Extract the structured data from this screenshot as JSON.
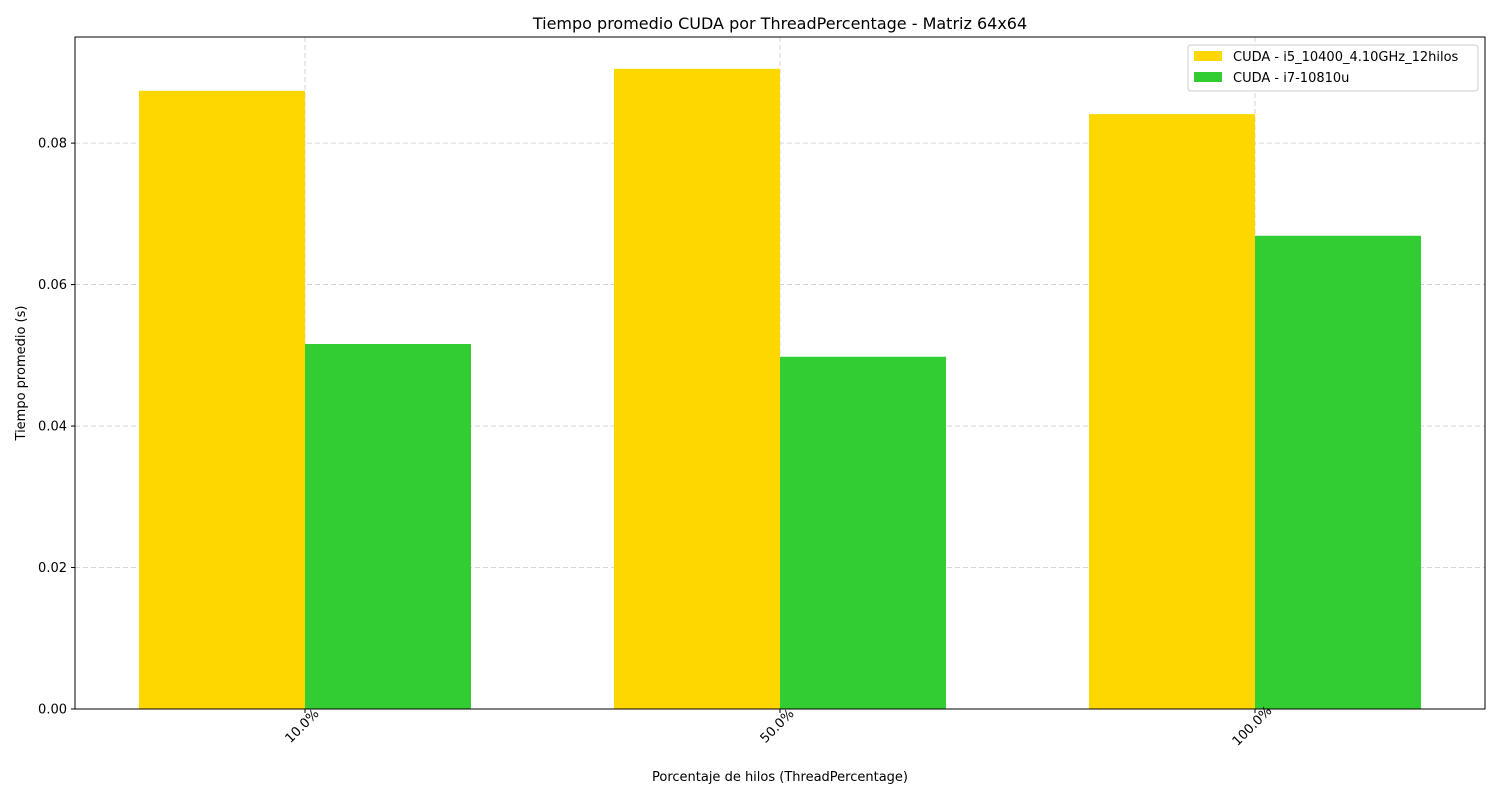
{
  "chart_data": {
    "type": "bar",
    "title": "Tiempo promedio CUDA por ThreadPercentage - Matriz 64x64",
    "xlabel": "Porcentaje de hilos (ThreadPercentage)",
    "ylabel": "Tiempo promedio (s)",
    "categories": [
      "10.0%",
      "50.0%",
      "100.0%"
    ],
    "series": [
      {
        "name": "CUDA - i5_10400_4.10GHz_12hilos",
        "color": "#ffd700",
        "values": [
          0.0874,
          0.0905,
          0.0841
        ]
      },
      {
        "name": "CUDA - i7-10810u",
        "color": "#32cd32",
        "values": [
          0.0516,
          0.0498,
          0.0669
        ]
      }
    ],
    "ylim": [
      0,
      0.095
    ],
    "yticks": [
      0.0,
      0.02,
      0.04,
      0.06,
      0.08
    ],
    "ytick_labels": [
      "0.00",
      "0.02",
      "0.04",
      "0.06",
      "0.08"
    ],
    "grid": true,
    "legend_position": "top-right",
    "xtick_rotation": -45
  }
}
